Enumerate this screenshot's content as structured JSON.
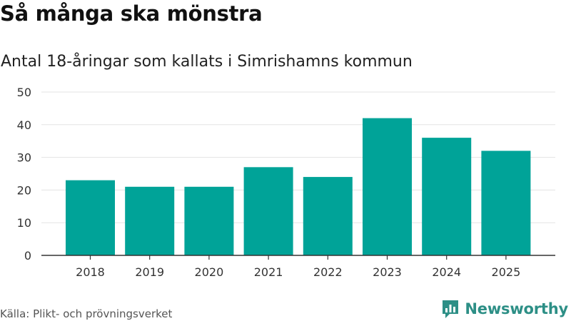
{
  "header": {
    "title": "Så många ska mönstra",
    "subtitle": "Antal 18-åringar som kallats i Simrishamns kommun"
  },
  "footer": {
    "source": "Källa: Plikt- och prövningsverket",
    "brand": "Newsworthy"
  },
  "colors": {
    "bar": "#00a398",
    "gridline": "#e3e3e3",
    "axis": "#333333",
    "brand": "#2d8f86"
  },
  "icons": {
    "brand_logo": "bar-chart-speech-bubble-icon"
  },
  "chart_data": {
    "type": "bar",
    "categories": [
      "2018",
      "2019",
      "2020",
      "2021",
      "2022",
      "2023",
      "2024",
      "2025"
    ],
    "values": [
      23,
      21,
      21,
      27,
      24,
      42,
      36,
      32
    ],
    "title": "Så många ska mönstra",
    "subtitle": "Antal 18-åringar som kallats i Simrishamns kommun",
    "xlabel": "",
    "ylabel": "",
    "ylim": [
      0,
      50
    ],
    "yticks": [
      0,
      10,
      20,
      30,
      40,
      50
    ],
    "grid": true,
    "legend": "none"
  }
}
